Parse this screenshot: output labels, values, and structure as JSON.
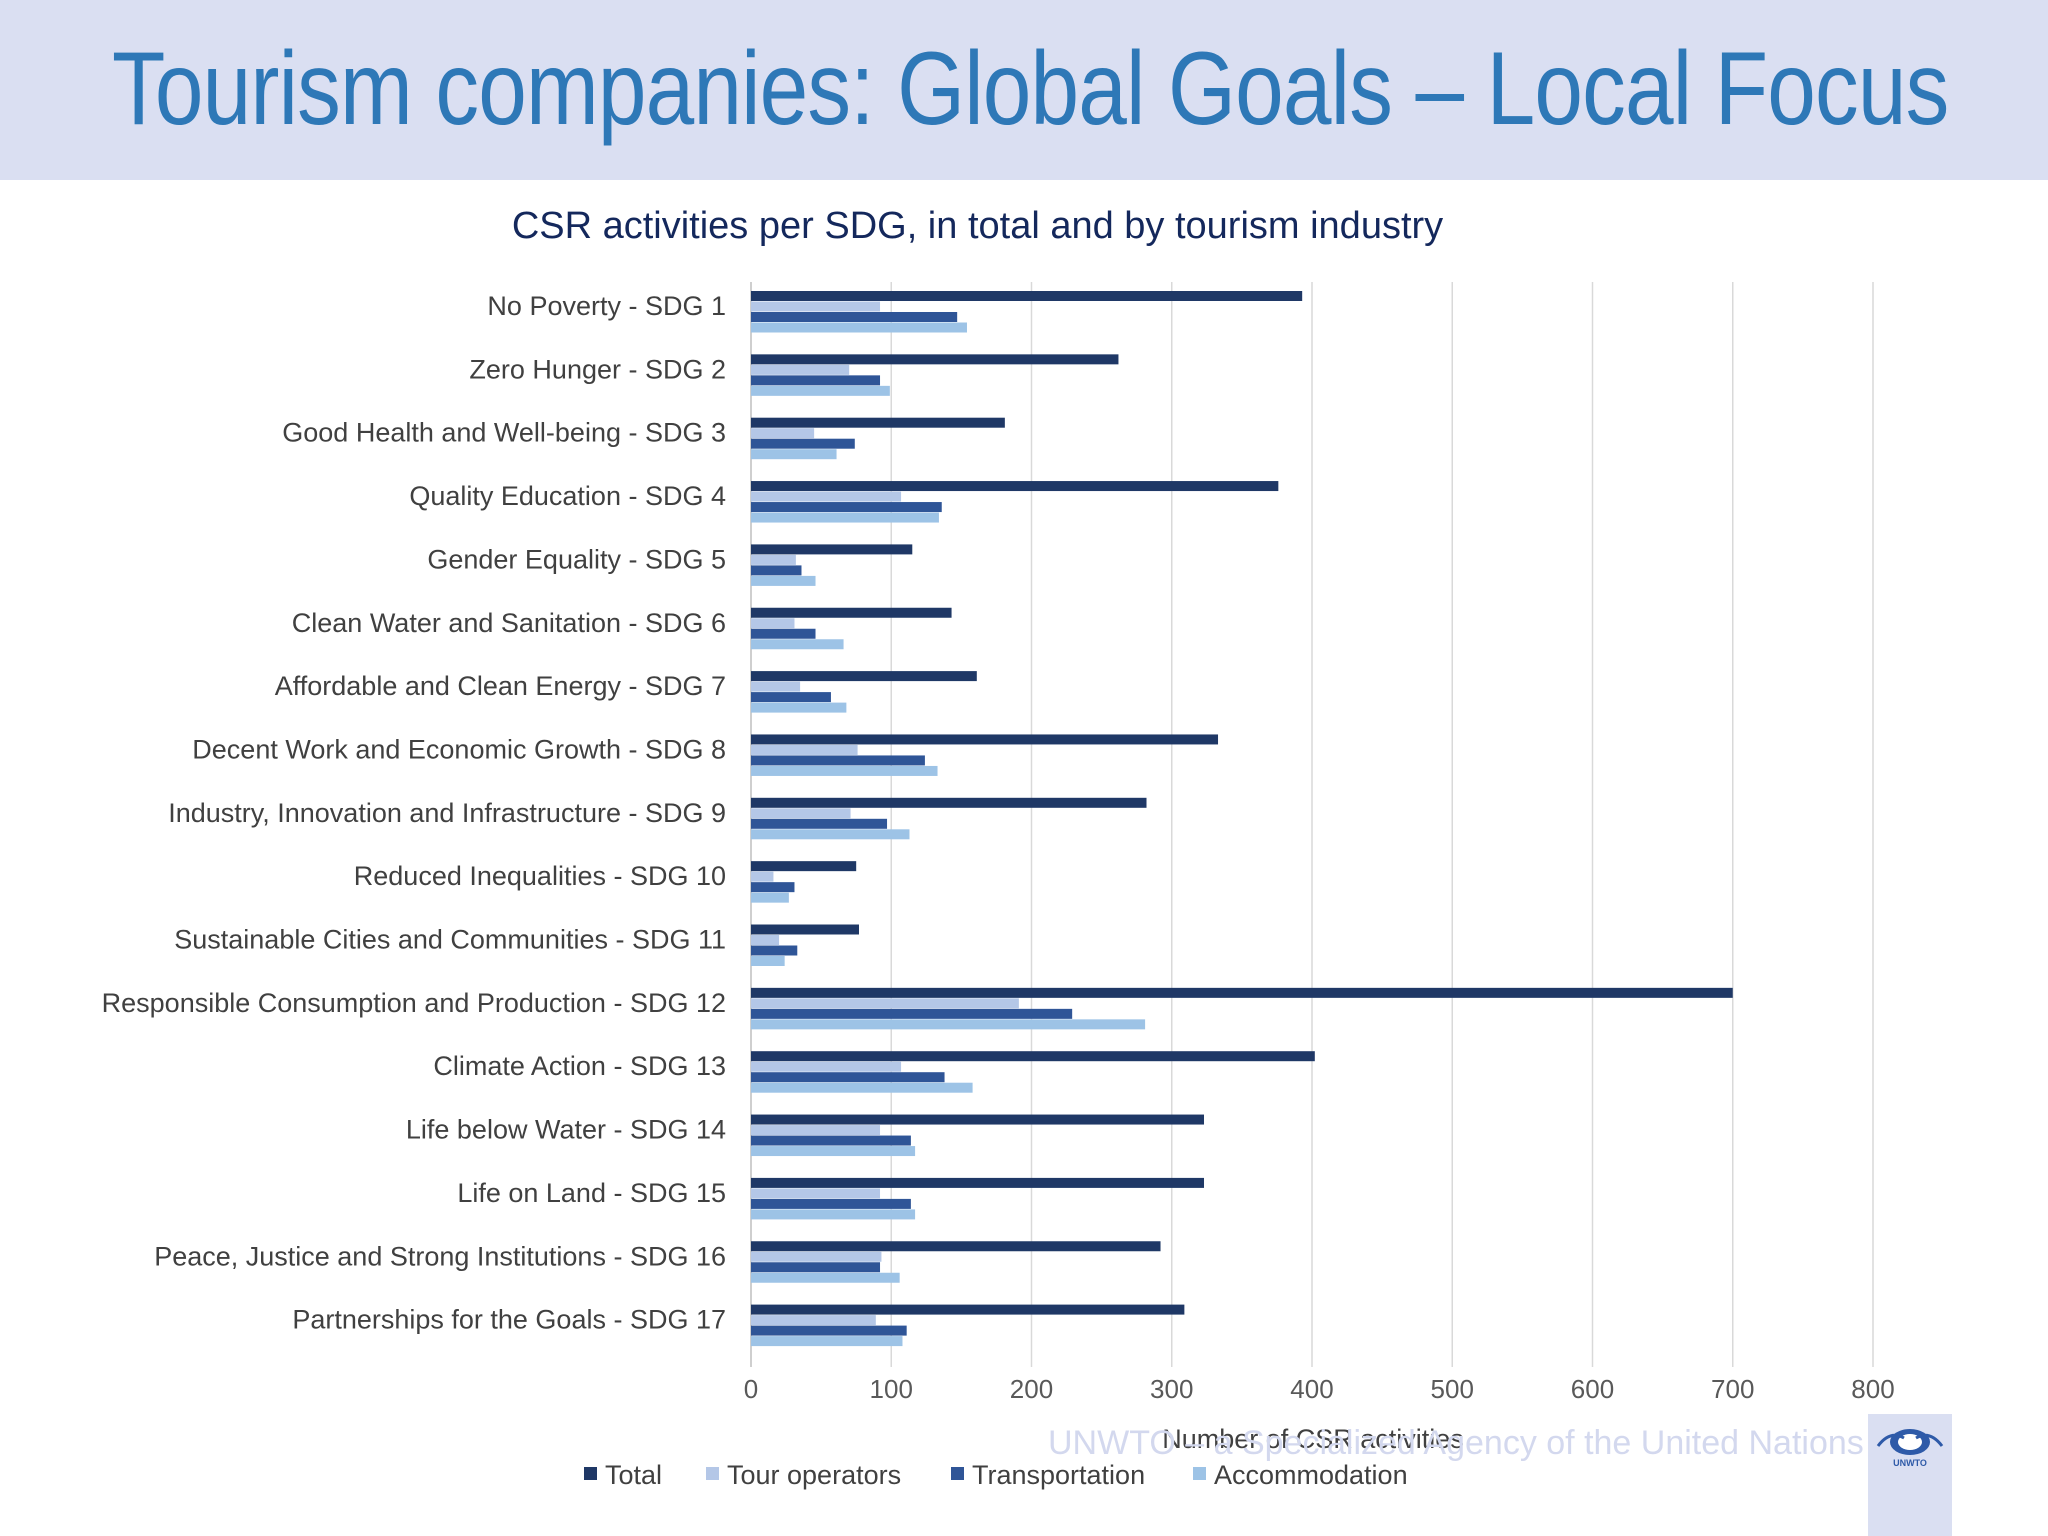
{
  "slide": {
    "title": "Tourism companies: Global Goals – Local Focus",
    "footer": "UNWTO – a Specialized Agency of the United Nations",
    "logo_text": "UNWTO"
  },
  "colors": {
    "header_band": "#dadff2",
    "title": "#2e78b7",
    "total": "#1f3866",
    "tour_operators": "#b4c7e7",
    "transportation": "#2f5597",
    "accommodation": "#9dc3e6"
  },
  "chart_data": {
    "type": "bar",
    "orientation": "horizontal",
    "title": "CSR activities per SDG, in total and by tourism industry",
    "xlabel": "Number of CSR activities",
    "ylabel": "",
    "xlim": [
      0,
      800
    ],
    "xticks": [
      0,
      100,
      200,
      300,
      400,
      500,
      600,
      700,
      800
    ],
    "grid": true,
    "legend_position": "bottom",
    "categories": [
      "No Poverty - SDG 1",
      "Zero Hunger - SDG 2",
      "Good Health and Well-being - SDG 3",
      "Quality Education - SDG 4",
      "Gender Equality - SDG 5",
      "Clean Water and Sanitation - SDG 6",
      "Affordable and Clean Energy - SDG 7",
      "Decent Work and Economic Growth - SDG 8",
      "Industry, Innovation and Infrastructure - SDG 9",
      "Reduced Inequalities - SDG 10",
      "Sustainable Cities and Communities - SDG 11",
      "Responsible Consumption and Production - SDG 12",
      "Climate Action - SDG 13",
      "Life below Water - SDG 14",
      "Life on Land - SDG 15",
      "Peace, Justice and Strong Institutions - SDG 16",
      "Partnerships for the Goals - SDG 17"
    ],
    "series": [
      {
        "name": "Total",
        "color": "#1f3866",
        "values": [
          393,
          262,
          181,
          376,
          115,
          143,
          161,
          333,
          282,
          75,
          77,
          700,
          402,
          323,
          323,
          292,
          309
        ]
      },
      {
        "name": "Tour operators",
        "color": "#b4c7e7",
        "values": [
          92,
          70,
          45,
          107,
          32,
          31,
          35,
          76,
          71,
          16,
          20,
          191,
          107,
          92,
          92,
          93,
          89
        ]
      },
      {
        "name": "Transportation",
        "color": "#2f5597",
        "values": [
          147,
          92,
          74,
          136,
          36,
          46,
          57,
          124,
          97,
          31,
          33,
          229,
          138,
          114,
          114,
          92,
          111
        ]
      },
      {
        "name": "Accommodation",
        "color": "#9dc3e6",
        "values": [
          154,
          99,
          61,
          134,
          46,
          66,
          68,
          133,
          113,
          27,
          24,
          281,
          158,
          117,
          117,
          106,
          108
        ]
      }
    ]
  }
}
